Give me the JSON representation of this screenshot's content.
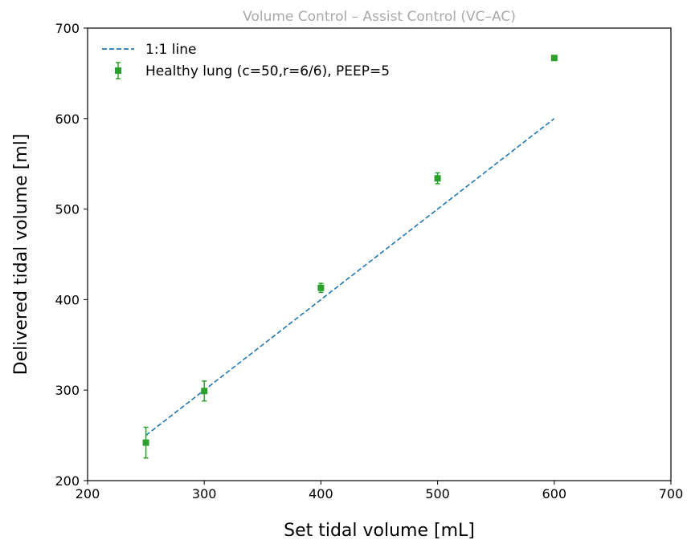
{
  "chart_data": {
    "type": "scatter",
    "title": "Volume Control – Assist Control (VC–AC)",
    "xlabel": "Set tidal volume [mL]",
    "ylabel": "Delivered tidal volume [ml]",
    "xlim": [
      200,
      700
    ],
    "ylim": [
      200,
      700
    ],
    "xticks": [
      "200",
      "300",
      "400",
      "500",
      "600",
      "700"
    ],
    "yticks": [
      "200",
      "300",
      "400",
      "500",
      "600",
      "700"
    ],
    "grid": false,
    "legend_position": "top-left",
    "reference_line": {
      "name": "1:1 line",
      "style": "dashed",
      "color": "#1f77b4",
      "x": [
        250,
        600
      ],
      "y": [
        250,
        600
      ]
    },
    "series": [
      {
        "name": "Healthy lung (c=50,r=6/6), PEEP=5",
        "marker": "square",
        "color": "#2ca02c",
        "x": [
          250,
          300,
          400,
          500,
          600
        ],
        "y": [
          242,
          299,
          413,
          534,
          667
        ],
        "yerr": [
          17,
          11,
          5,
          6,
          2
        ]
      }
    ]
  }
}
